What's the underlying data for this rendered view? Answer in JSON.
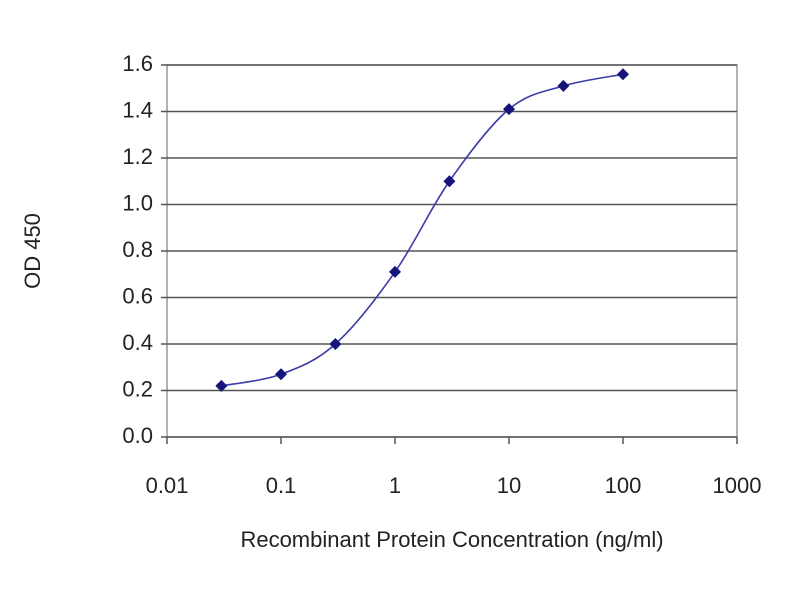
{
  "chart_data": {
    "type": "line",
    "x_label": "Recombinant Protein Concentration (ng/ml)",
    "y_label": "OD 450",
    "x": [
      0.03,
      0.1,
      0.3,
      1,
      3,
      10,
      30,
      100
    ],
    "values": [
      0.22,
      0.27,
      0.4,
      0.71,
      1.1,
      1.41,
      1.51,
      1.56
    ],
    "x_scale": "log",
    "xlim": [
      0.01,
      1000
    ],
    "xticks": [
      0.01,
      0.1,
      1,
      10,
      100,
      1000
    ],
    "ylim": [
      0,
      1.6
    ],
    "yticks": [
      {
        "value": 0,
        "label": "0.0"
      },
      0.2,
      0.4,
      0.6,
      0.8,
      {
        "value": 1,
        "label": "1.0"
      },
      1.2,
      1.4,
      1.6
    ],
    "grid": true,
    "color": "#3c3ca8",
    "marker_color": "#14147a"
  }
}
